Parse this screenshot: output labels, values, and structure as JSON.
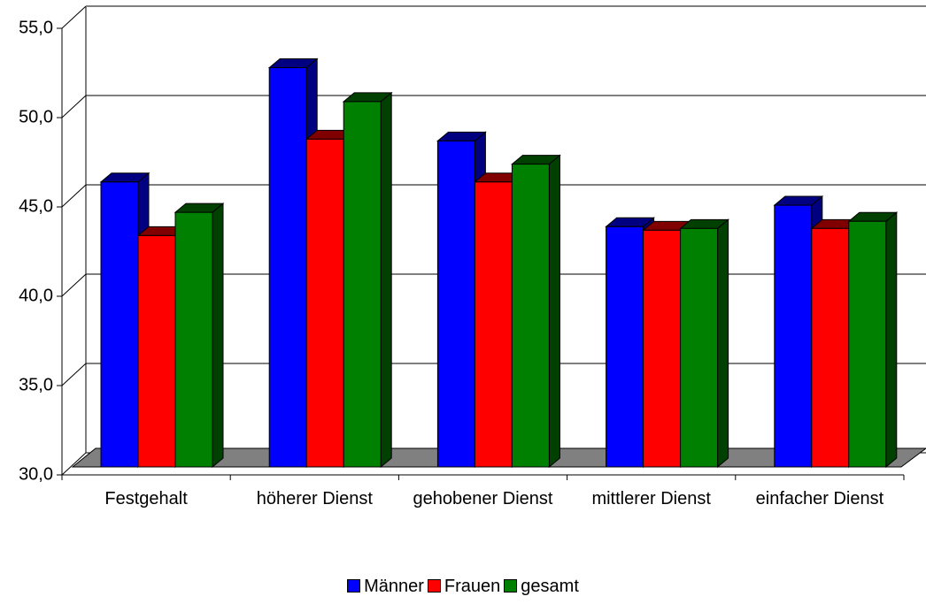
{
  "chart_data": {
    "type": "bar3d",
    "categories": [
      "Festgehalt",
      "höherer Dienst",
      "gehobener Dienst",
      "mittlerer Dienst",
      "einfacher Dienst"
    ],
    "series": [
      {
        "name": "Männer",
        "color": "#0000ff",
        "values": [
          46.0,
          52.4,
          48.3,
          43.5,
          44.7
        ]
      },
      {
        "name": "Frauen",
        "color": "#ff0000",
        "values": [
          43.0,
          48.4,
          46.0,
          43.3,
          43.4
        ]
      },
      {
        "name": "gesamt",
        "color": "#008000",
        "values": [
          44.3,
          50.5,
          47.0,
          43.4,
          43.8
        ]
      }
    ],
    "ylim": [
      30,
      55
    ],
    "yticks": [
      {
        "value": 30,
        "label": "30,0"
      },
      {
        "value": 35,
        "label": "35,0"
      },
      {
        "value": 40,
        "label": "40,0"
      },
      {
        "value": 45,
        "label": "45,0"
      },
      {
        "value": 50,
        "label": "50,0"
      },
      {
        "value": 55,
        "label": "55,0"
      }
    ],
    "grid": true,
    "legend": "bottom"
  }
}
